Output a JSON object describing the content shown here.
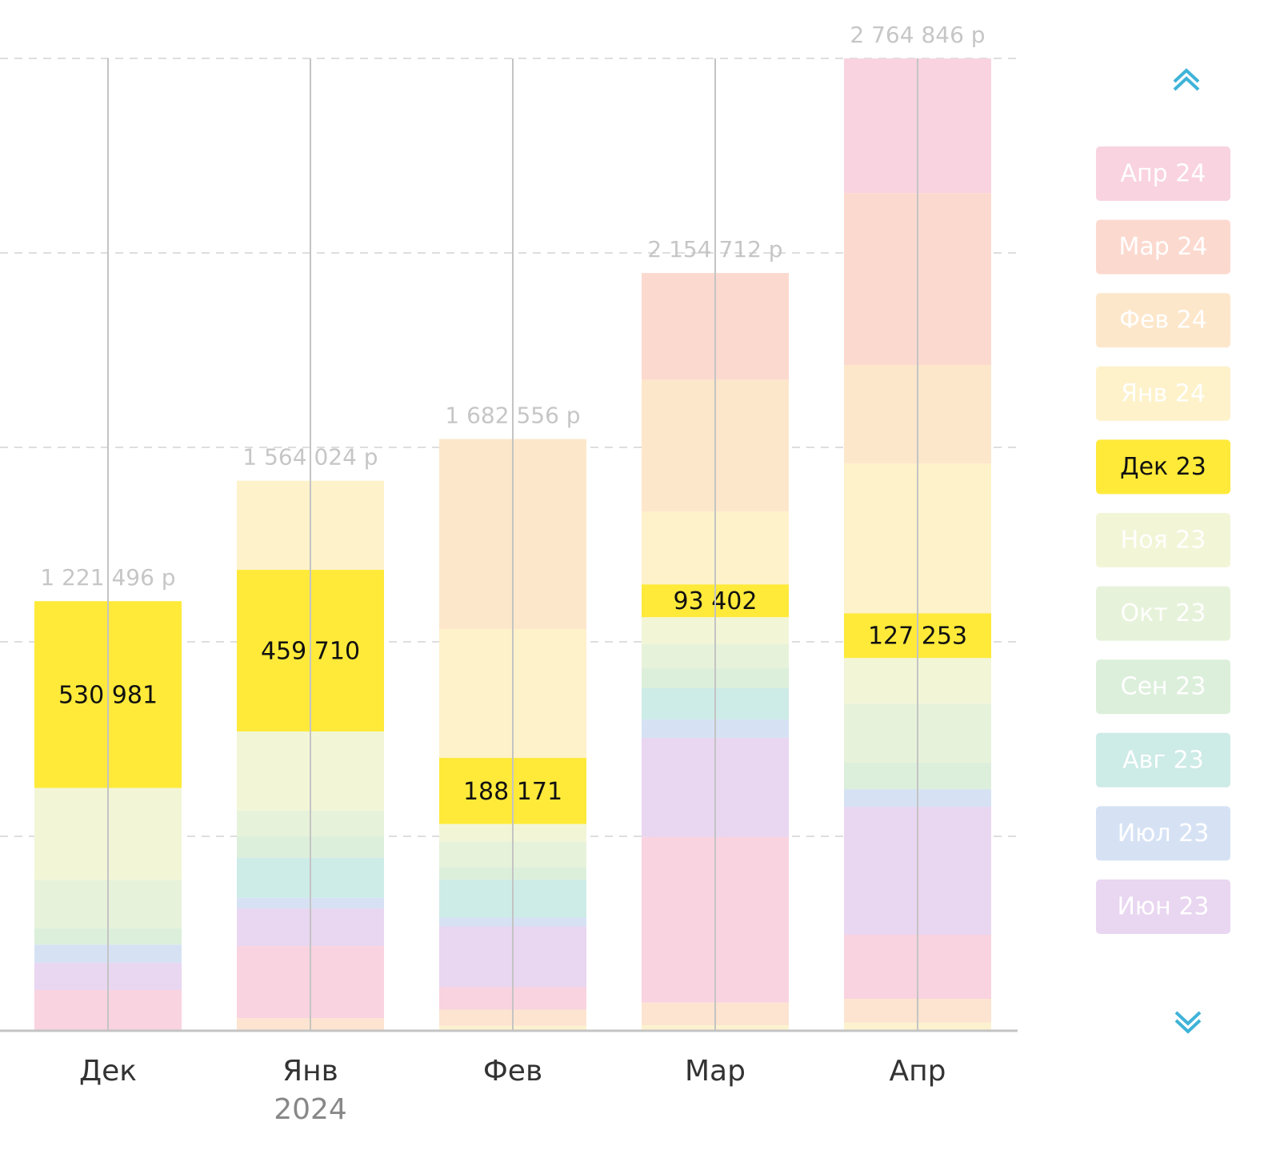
{
  "chart_data": {
    "type": "stacked-bar",
    "categories": [
      "Дек",
      "Янв",
      "Фев",
      "Мар",
      "Апр"
    ],
    "x_sublabels": [
      null,
      "2024",
      null,
      null,
      null
    ],
    "totals": [
      1221496,
      1564024,
      1682556,
      2154712,
      2764846
    ],
    "total_labels": [
      "1 221 496 р",
      "1 564 024 р",
      "1 682 556 р",
      "2 154 712 р",
      "2 764 846 р"
    ],
    "ylim": [
      0,
      2764846
    ],
    "grid": true,
    "highlight_series": 9,
    "series": [
      {
        "name": null,
        "color": "#fdf2cf",
        "values": [
          null,
          null,
          14000,
          16000,
          23000
        ]
      },
      {
        "name": null,
        "color": "#fde4d0",
        "values": [
          null,
          36000,
          46000,
          64000,
          68000
        ]
      },
      {
        "name": null,
        "color": "#f9d3e0",
        "values": [
          116000,
          205000,
          64000,
          471000,
          182000
        ]
      },
      {
        "name": "Июн 23",
        "color": "#e9d6f1",
        "values": [
          77000,
          107000,
          173000,
          282000,
          364000
        ]
      },
      {
        "name": "Июл 23",
        "color": "#d6e2f4",
        "values": [
          52000,
          30000,
          25000,
          52000,
          50000
        ]
      },
      {
        "name": "Авг 23",
        "color": "#cdebe7",
        "values": [
          null,
          114000,
          107000,
          89000,
          null
        ]
      },
      {
        "name": "Сен 23",
        "color": "#dcefdb",
        "values": [
          46000,
          61000,
          36000,
          57000,
          75000
        ]
      },
      {
        "name": "Окт 23",
        "color": "#e7f2da",
        "values": [
          137515,
          73000,
          73000,
          68000,
          168000
        ]
      },
      {
        "name": "Ноя 23",
        "color": "#f2f6d7",
        "values": [
          262000,
          225000,
          50000,
          77000,
          130000
        ]
      },
      {
        "name": "Дек 23",
        "color": "#ffea3a",
        "values": [
          530981,
          459710,
          188171,
          93402,
          127253
        ],
        "value_labels": [
          "530 981",
          "459 710",
          "188 171",
          "93 402",
          "127 253"
        ]
      },
      {
        "name": "Янв 24",
        "color": "#fef2cb",
        "values": [
          null,
          253314,
          366000,
          207000,
          426000
        ]
      },
      {
        "name": "Фев 24",
        "color": "#fde7cb",
        "values": [
          null,
          null,
          540385,
          375000,
          280000
        ]
      },
      {
        "name": "Мар 24",
        "color": "#fcd9cf",
        "values": [
          null,
          null,
          null,
          303310,
          489000
        ]
      },
      {
        "name": "Апр 24",
        "color": "#f9d3e0",
        "values": [
          null,
          null,
          null,
          null,
          382593
        ]
      }
    ]
  }
}
